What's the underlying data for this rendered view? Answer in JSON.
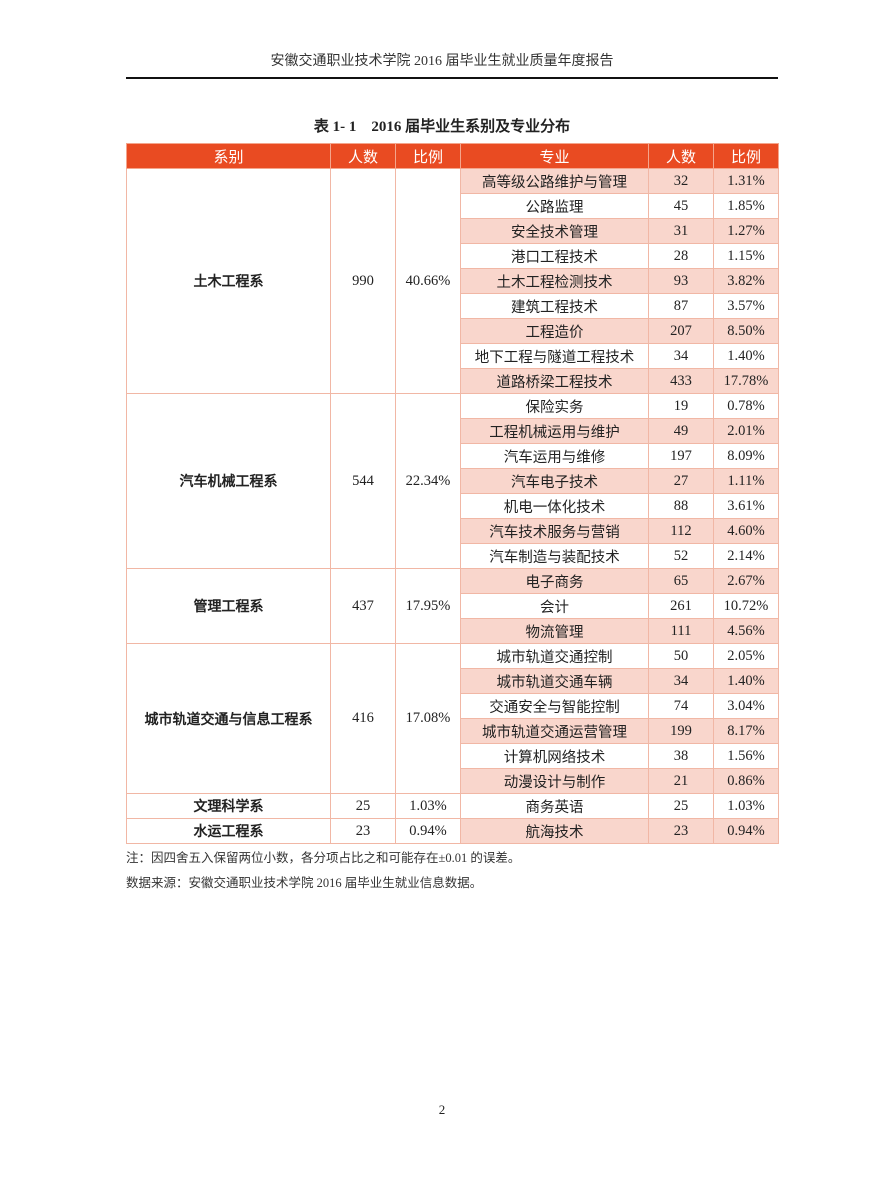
{
  "running_header": "安徽交通职业技术学院 2016 届毕业生就业质量年度报告",
  "caption": "表 1- 1　2016 届毕业生系别及专业分布",
  "columns": [
    "系别",
    "人数",
    "比例",
    "专业",
    "人数",
    "比例"
  ],
  "colors": {
    "header_bg": "#e94b22",
    "row_shade": "#f9d6cc",
    "border": "#f1b7a5"
  },
  "departments": [
    {
      "name": "土木工程系",
      "count": "990",
      "ratio": "40.66%",
      "majors": [
        [
          "高等级公路维护与管理",
          "32",
          "1.31%"
        ],
        [
          "公路监理",
          "45",
          "1.85%"
        ],
        [
          "安全技术管理",
          "31",
          "1.27%"
        ],
        [
          "港口工程技术",
          "28",
          "1.15%"
        ],
        [
          "土木工程检测技术",
          "93",
          "3.82%"
        ],
        [
          "建筑工程技术",
          "87",
          "3.57%"
        ],
        [
          "工程造价",
          "207",
          "8.50%"
        ],
        [
          "地下工程与隧道工程技术",
          "34",
          "1.40%"
        ],
        [
          "道路桥梁工程技术",
          "433",
          "17.78%"
        ]
      ]
    },
    {
      "name": "汽车机械工程系",
      "count": "544",
      "ratio": "22.34%",
      "majors": [
        [
          "保险实务",
          "19",
          "0.78%"
        ],
        [
          "工程机械运用与维护",
          "49",
          "2.01%"
        ],
        [
          "汽车运用与维修",
          "197",
          "8.09%"
        ],
        [
          "汽车电子技术",
          "27",
          "1.11%"
        ],
        [
          "机电一体化技术",
          "88",
          "3.61%"
        ],
        [
          "汽车技术服务与营销",
          "112",
          "4.60%"
        ],
        [
          "汽车制造与装配技术",
          "52",
          "2.14%"
        ]
      ]
    },
    {
      "name": "管理工程系",
      "count": "437",
      "ratio": "17.95%",
      "majors": [
        [
          "电子商务",
          "65",
          "2.67%"
        ],
        [
          "会计",
          "261",
          "10.72%"
        ],
        [
          "物流管理",
          "111",
          "4.56%"
        ]
      ]
    },
    {
      "name": "城市轨道交通与信息工程系",
      "count": "416",
      "ratio": "17.08%",
      "majors": [
        [
          "城市轨道交通控制",
          "50",
          "2.05%"
        ],
        [
          "城市轨道交通车辆",
          "34",
          "1.40%"
        ],
        [
          "交通安全与智能控制",
          "74",
          "3.04%"
        ],
        [
          "城市轨道交通运营管理",
          "199",
          "8.17%"
        ],
        [
          "计算机网络技术",
          "38",
          "1.56%"
        ],
        [
          "动漫设计与制作",
          "21",
          "0.86%"
        ]
      ]
    },
    {
      "name": "文理科学系",
      "count": "25",
      "ratio": "1.03%",
      "majors": [
        [
          "商务英语",
          "25",
          "1.03%"
        ]
      ]
    },
    {
      "name": "水运工程系",
      "count": "23",
      "ratio": "0.94%",
      "majors": [
        [
          "航海技术",
          "23",
          "0.94%"
        ]
      ]
    }
  ],
  "note": "注：因四舍五入保留两位小数，各分项占比之和可能存在±0.01 的误差。",
  "source": "数据来源：安徽交通职业技术学院 2016 届毕业生就业信息数据。",
  "page_number": "2"
}
